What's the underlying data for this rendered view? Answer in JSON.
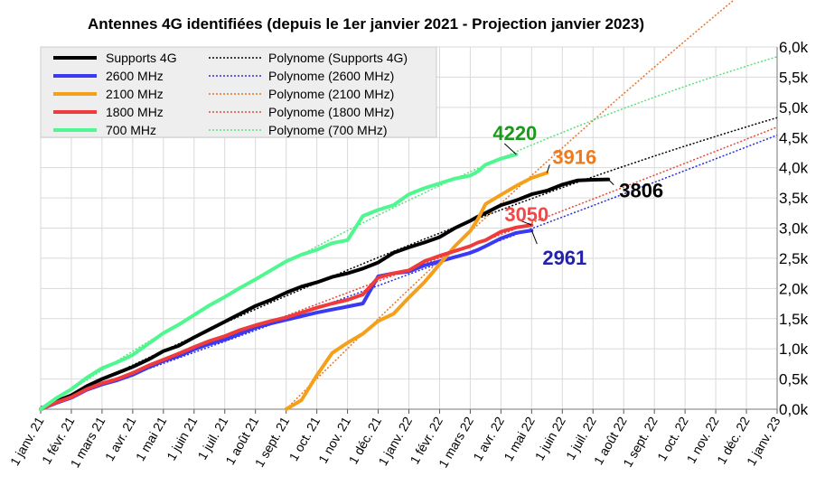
{
  "chart_data": {
    "type": "line",
    "title": "Antennes 4G identifiées (depuis le 1er janvier 2021 - Projection janvier 2023)",
    "xlabel": "",
    "ylabel": "",
    "ylim": [
      0,
      6000
    ],
    "y_ticks": [
      0,
      500,
      1000,
      1500,
      2000,
      2500,
      3000,
      3500,
      4000,
      4500,
      5000,
      5500,
      6000
    ],
    "y_tick_labels": [
      "0,0k",
      "0,5k",
      "1,0k",
      "1,5k",
      "2,0k",
      "2,5k",
      "3,0k",
      "3,5k",
      "4,0k",
      "4,5k",
      "5,0k",
      "5,5k",
      "6,0k"
    ],
    "x_tick_labels": [
      "1 janv. 21",
      "1 févr. 21",
      "1 mars 21",
      "1 avr. 21",
      "1 mai 21",
      "1 juin 21",
      "1 juil. 21",
      "1 août 21",
      "1 sept. 21",
      "1 oct. 21",
      "1 nov. 21",
      "1 déc. 21",
      "1 janv. 22",
      "1 févr. 22",
      "1 mars 22",
      "1 avr. 22",
      "1 mai 22",
      "1 juin 22",
      "1 juil. 22",
      "1 août 22",
      "1 sept. 22",
      "1 oct. 22",
      "1 nov. 22",
      "1 déc. 22",
      "1 janv. 23"
    ],
    "grid": true,
    "legend_position": "top-left",
    "x": [
      0,
      0.5,
      1,
      1.5,
      2,
      2.5,
      3,
      3.5,
      4,
      4.5,
      5,
      5.5,
      6,
      6.5,
      7,
      7.5,
      8,
      8.5,
      9,
      9.5,
      10,
      10.5,
      11,
      11.5,
      12,
      12.5,
      13,
      13.5,
      14,
      14.25,
      14.5,
      15,
      15.5,
      16,
      16.5,
      17,
      17.5,
      18,
      18.5,
      19,
      19.5,
      20,
      20.5,
      21
    ],
    "series": [
      {
        "name": "Supports 4G",
        "color": "#000000",
        "width": 4,
        "values": [
          0,
          130,
          230,
          380,
          500,
          600,
          700,
          820,
          960,
          1050,
          1190,
          1320,
          1450,
          1580,
          1710,
          1810,
          1930,
          2030,
          2100,
          2190,
          2250,
          2330,
          2430,
          2590,
          2680,
          2760,
          2850,
          3000,
          3120,
          3190,
          3250,
          3380,
          3460,
          3560,
          3620,
          3720,
          3790,
          3800,
          3806,
          null,
          null,
          null,
          null,
          null
        ],
        "end_label": "3806"
      },
      {
        "name": "2600 MHz",
        "color": "#3a3af5",
        "width": 4,
        "values": [
          0,
          100,
          190,
          320,
          410,
          480,
          570,
          690,
          800,
          880,
          990,
          1080,
          1150,
          1250,
          1350,
          1420,
          1480,
          1540,
          1600,
          1650,
          1700,
          1750,
          2200,
          2250,
          2280,
          2380,
          2450,
          2520,
          2590,
          2640,
          2700,
          2830,
          2920,
          2961,
          null,
          null,
          null,
          null,
          null,
          null,
          null,
          null,
          null,
          null
        ],
        "end_label": "2961"
      },
      {
        "name": "2100 MHz",
        "color": "#f5a01a",
        "width": 4,
        "values": [
          null,
          null,
          null,
          null,
          null,
          null,
          null,
          null,
          null,
          null,
          null,
          null,
          null,
          null,
          null,
          null,
          0,
          150,
          560,
          930,
          1100,
          1250,
          1460,
          1580,
          1850,
          2100,
          2400,
          2700,
          2950,
          3150,
          3400,
          3550,
          3700,
          3830,
          3916,
          null,
          null,
          null,
          null,
          null,
          null,
          null,
          null,
          null
        ],
        "end_label": "3916"
      },
      {
        "name": "1800 MHz",
        "color": "#ef3b3b",
        "width": 4,
        "values": [
          0,
          110,
          200,
          330,
          430,
          500,
          600,
          720,
          820,
          920,
          1030,
          1130,
          1210,
          1310,
          1390,
          1460,
          1520,
          1600,
          1680,
          1750,
          1810,
          1900,
          2180,
          2250,
          2300,
          2450,
          2540,
          2620,
          2700,
          2760,
          2800,
          2940,
          3010,
          3050,
          null,
          null,
          null,
          null,
          null,
          null,
          null,
          null,
          null,
          null
        ],
        "end_label": "3050"
      },
      {
        "name": "700 MHz",
        "color": "#4ef78f",
        "width": 4,
        "values": [
          0,
          180,
          330,
          520,
          680,
          780,
          900,
          1080,
          1260,
          1400,
          1560,
          1720,
          1860,
          2010,
          2150,
          2300,
          2450,
          2560,
          2640,
          2750,
          2800,
          3200,
          3300,
          3380,
          3560,
          3660,
          3740,
          3820,
          3870,
          3940,
          4050,
          4150,
          4220,
          null,
          null,
          null,
          null,
          null,
          null,
          null,
          null,
          null,
          null,
          null
        ],
        "end_label": "4220"
      }
    ],
    "trend_series": [
      {
        "name": "Polynome (Supports 4G)",
        "color": "#000000"
      },
      {
        "name": "Polynome (2600 MHz)",
        "color": "#2d2dd8"
      },
      {
        "name": "Polynome (2100 MHz)",
        "color": "#e8742b"
      },
      {
        "name": "Polynome (1800 MHz)",
        "color": "#e24a3e"
      },
      {
        "name": "Polynome (700 MHz)",
        "color": "#59e07f"
      }
    ]
  }
}
